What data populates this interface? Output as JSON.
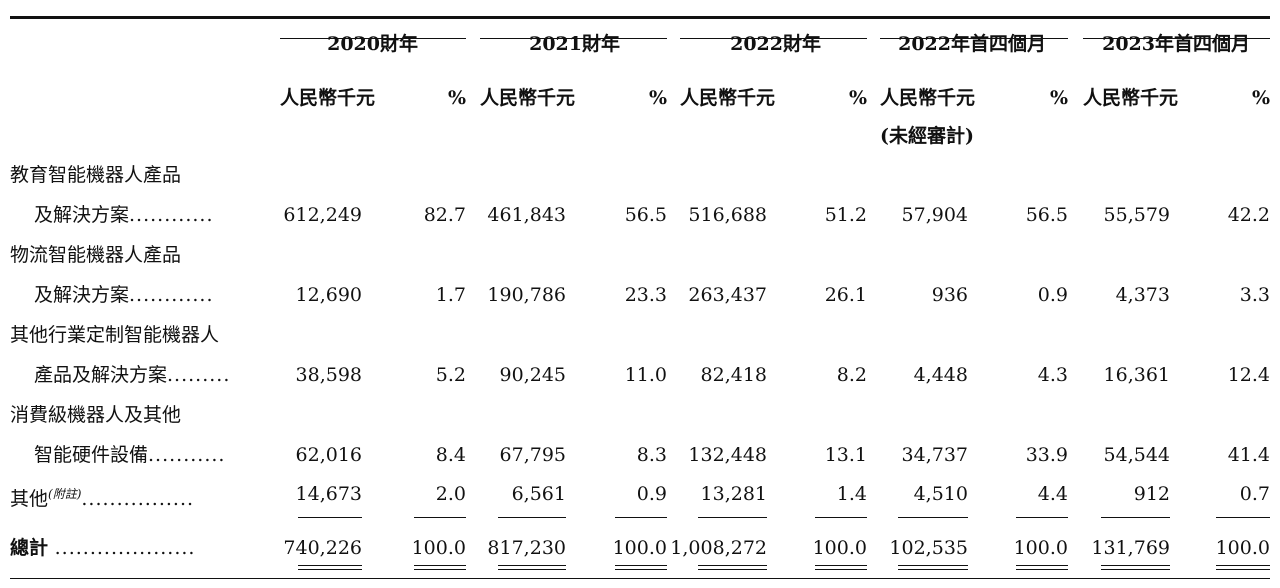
{
  "periods": [
    {
      "label": "2020財年"
    },
    {
      "label": "2021財年"
    },
    {
      "label": "2022財年"
    },
    {
      "label": "2022年首四個月",
      "note": "(未經審計)"
    },
    {
      "label": "2023年首四個月"
    }
  ],
  "sub_headers": {
    "amount": "人民幣千元",
    "pct": "%"
  },
  "rows": [
    {
      "line1": "教育智能機器人產品",
      "line2": "及解決方案",
      "dots": "............",
      "values": [
        "612,249",
        "82.7",
        "461,843",
        "56.5",
        "516,688",
        "51.2",
        "57,904",
        "56.5",
        "55,579",
        "42.2"
      ]
    },
    {
      "line1": "物流智能機器人產品",
      "line2": "及解決方案",
      "dots": "............",
      "values": [
        "12,690",
        "1.7",
        "190,786",
        "23.3",
        "263,437",
        "26.1",
        "936",
        "0.9",
        "4,373",
        "3.3"
      ]
    },
    {
      "line1": "其他行業定制智能機器人",
      "line2": "產品及解決方案",
      "dots": ".........",
      "values": [
        "38,598",
        "5.2",
        "90,245",
        "11.0",
        "82,418",
        "8.2",
        "4,448",
        "4.3",
        "16,361",
        "12.4"
      ]
    },
    {
      "line1": "消費級機器人及其他",
      "line2": "智能硬件設備",
      "dots": "...........",
      "values": [
        "62,016",
        "8.4",
        "67,795",
        "8.3",
        "132,448",
        "13.1",
        "34,737",
        "33.9",
        "54,544",
        "41.4"
      ]
    },
    {
      "line1": "其他",
      "sup": "(附註)",
      "dots": "................",
      "values": [
        "14,673",
        "2.0",
        "6,561",
        "0.9",
        "13,281",
        "1.4",
        "4,510",
        "4.4",
        "912",
        "0.7"
      ]
    }
  ],
  "total": {
    "label": "總計",
    "dots": "....................",
    "values": [
      "740,226",
      "100.0",
      "817,230",
      "100.0",
      "1,008,272",
      "100.0",
      "102,535",
      "100.0",
      "131,769",
      "100.0"
    ]
  }
}
